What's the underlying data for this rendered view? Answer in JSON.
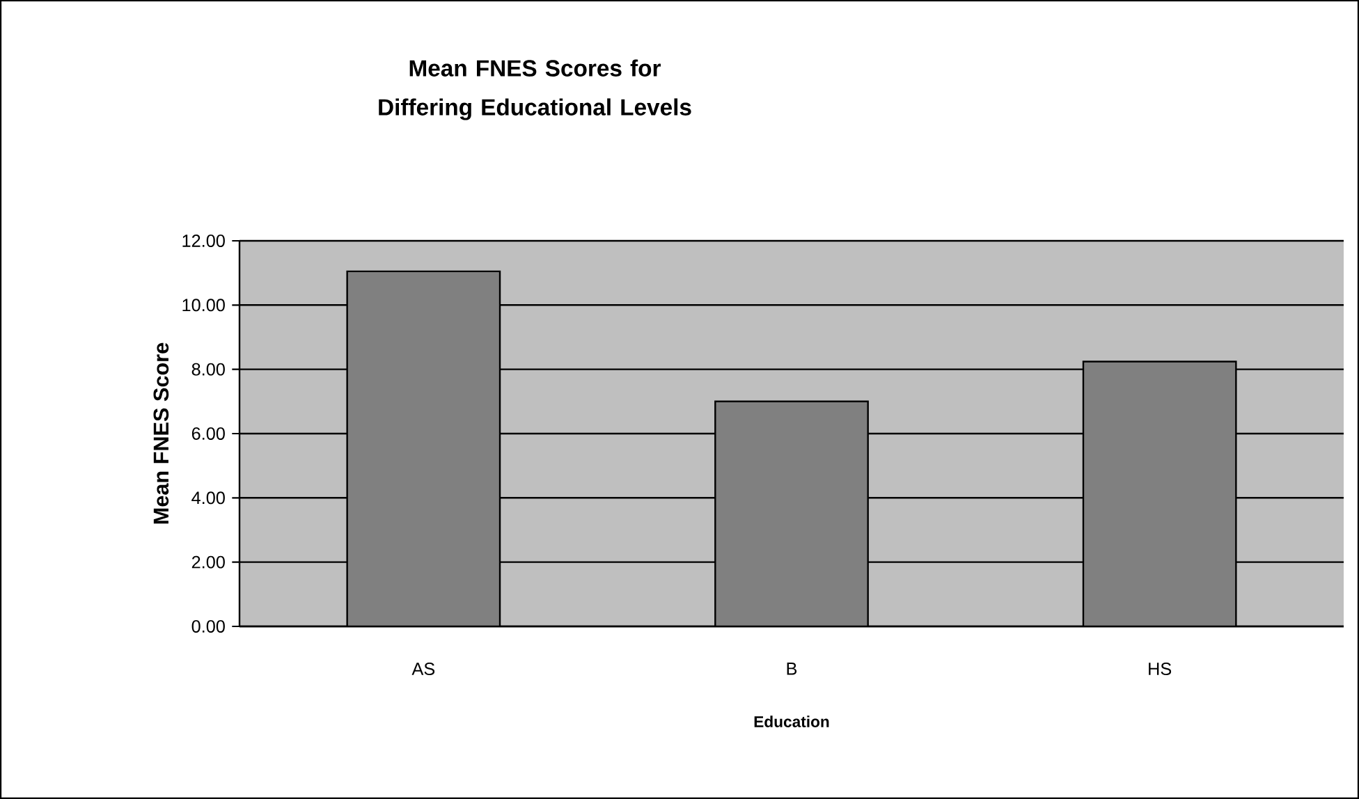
{
  "chart_data": {
    "type": "bar",
    "title": "Mean FNES Scores for Differing Educational Levels",
    "xlabel": "Education",
    "ylabel": "Mean FNES Score",
    "categories": [
      "AS",
      "B",
      "HS"
    ],
    "values": [
      11.05,
      7.0,
      8.24
    ],
    "color": "#808080",
    "ylim": [
      0,
      12
    ],
    "yticks": [
      {
        "value": 0,
        "label": "0.00"
      },
      {
        "value": 2,
        "label": "2.00"
      },
      {
        "value": 4,
        "label": "4.00"
      },
      {
        "value": 6,
        "label": "6.00"
      },
      {
        "value": 8,
        "label": "8.00"
      },
      {
        "value": 10,
        "label": "10.00"
      },
      {
        "value": 12,
        "label": "12.00"
      }
    ],
    "grid": "y"
  }
}
